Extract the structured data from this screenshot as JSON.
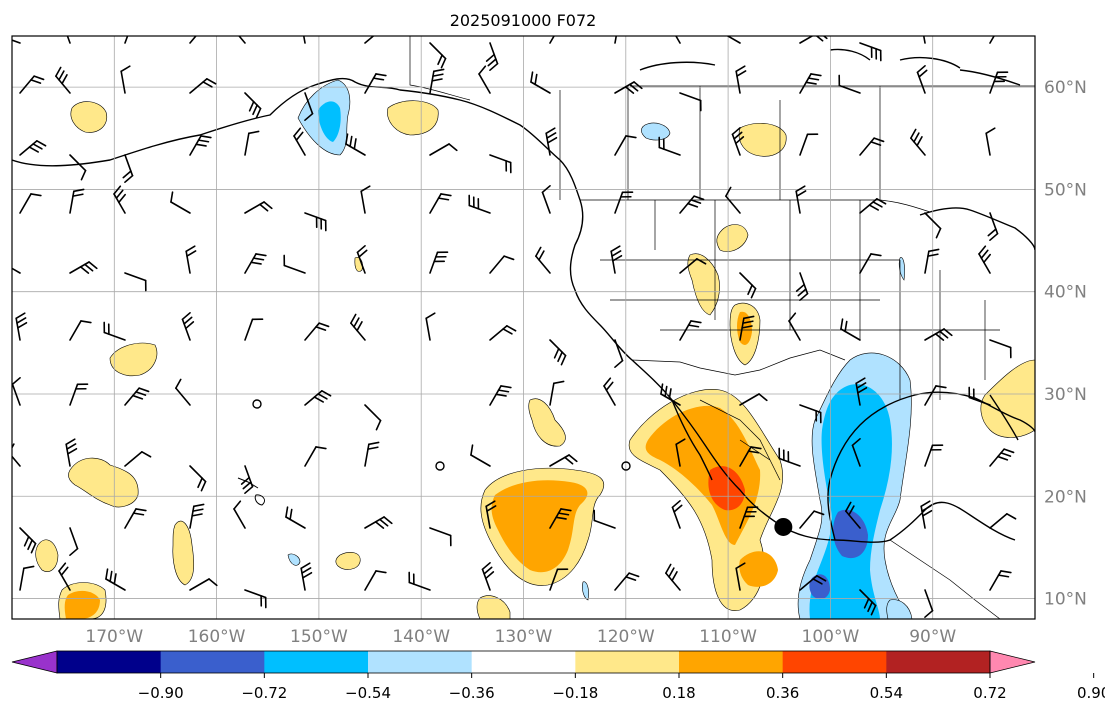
{
  "title": "2025091000 F072",
  "map": {
    "lon_ticks": [
      {
        "label": "170°W",
        "lon": -170
      },
      {
        "label": "160°W",
        "lon": -160
      },
      {
        "label": "150°W",
        "lon": -150
      },
      {
        "label": "140°W",
        "lon": -140
      },
      {
        "label": "130°W",
        "lon": -130
      },
      {
        "label": "120°W",
        "lon": -120
      },
      {
        "label": "110°W",
        "lon": -110
      },
      {
        "label": "100°W",
        "lon": -100
      },
      {
        "label": "90°W",
        "lon": -90
      }
    ],
    "lat_ticks": [
      {
        "label": "10°N",
        "lat": 10
      },
      {
        "label": "20°N",
        "lat": 20
      },
      {
        "label": "30°N",
        "lat": 30
      },
      {
        "label": "40°N",
        "lat": 40
      },
      {
        "label": "50°N",
        "lat": 50
      },
      {
        "label": "60°N",
        "lat": 60
      }
    ],
    "extent": {
      "lon_min": -180,
      "lon_max": -80,
      "lat_min": 8,
      "lat_max": 65
    },
    "storm_marker": {
      "lon": -104.6,
      "lat": 17.0
    },
    "tick_label_color": "#808080"
  },
  "colorbar": {
    "tick_labels": [
      "−0.90",
      "−0.72",
      "−0.54",
      "−0.36",
      "−0.18",
      "0.18",
      "0.36",
      "0.54",
      "0.72",
      "0.90"
    ],
    "levels": [
      -0.9,
      -0.72,
      -0.54,
      -0.36,
      -0.18,
      0.18,
      0.36,
      0.54,
      0.72,
      0.9
    ],
    "colors": [
      "#9932cc",
      "#00008b",
      "#3a5fcd",
      "#00bfff",
      "#b0e2ff",
      "#ffffff",
      "#ffe88a",
      "#ffa500",
      "#ff4500",
      "#b22222",
      "#ff88b0"
    ]
  }
}
